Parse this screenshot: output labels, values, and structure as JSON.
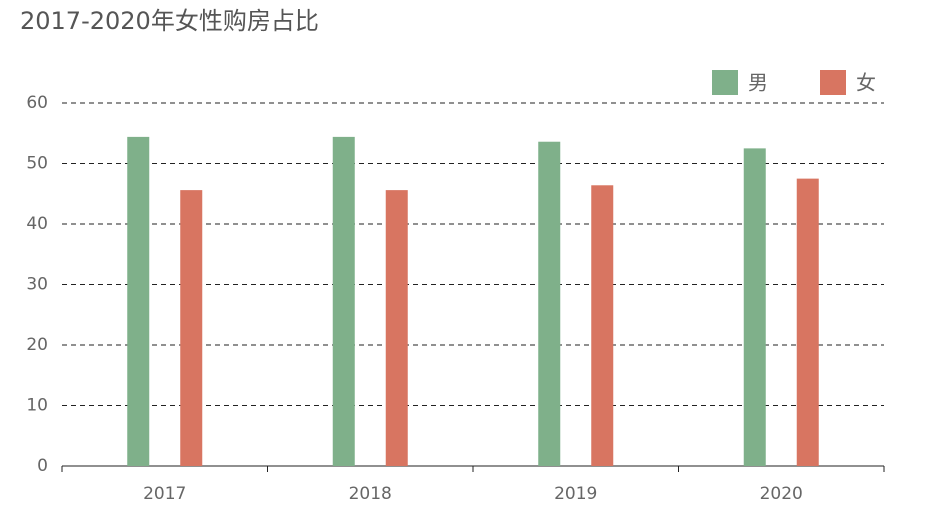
{
  "chart_data": {
    "type": "bar",
    "title": "2017-2020年女性购房占比",
    "categories": [
      "2017",
      "2018",
      "2019",
      "2020"
    ],
    "series": [
      {
        "name": "男",
        "color": "#7fb08a",
        "values": [
          54.4,
          54.4,
          53.6,
          52.5
        ]
      },
      {
        "name": "女",
        "color": "#d87561",
        "values": [
          45.6,
          45.6,
          46.4,
          47.5
        ]
      }
    ],
    "ylim": [
      0,
      60
    ],
    "yticks": [
      0,
      10,
      20,
      30,
      40,
      50,
      60
    ],
    "grid": true,
    "legend": "top-right"
  }
}
